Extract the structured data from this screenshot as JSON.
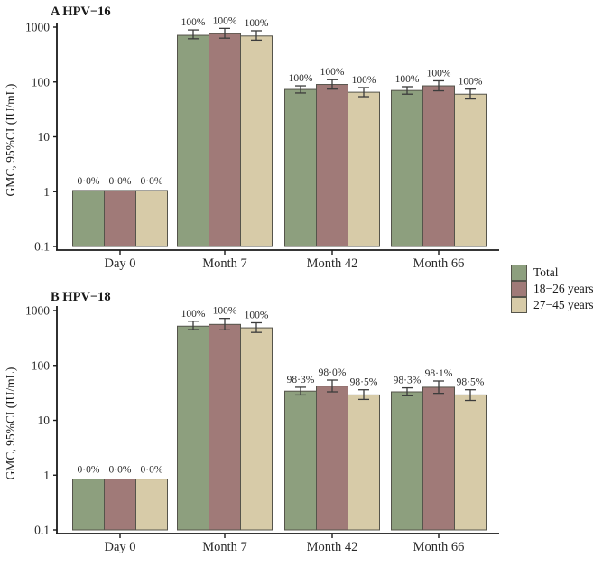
{
  "figure": {
    "legend": {
      "items": [
        {
          "label": "Total",
          "color": "#8d9f7e"
        },
        {
          "label": "18−26 years",
          "color": "#a07a78"
        },
        {
          "label": "27−45 years",
          "color": "#d7cba8"
        }
      ]
    },
    "colors": {
      "bar_border": "#55544b",
      "error_bar": "#3c3c3c",
      "axis": "#1a1a1a"
    }
  },
  "chart_data": [
    {
      "type": "bar",
      "panel_label": "A HPV−16",
      "ylabel": "GMC, 95%CI (IU/mL)",
      "yscale": "log",
      "ylim": [
        0.1,
        1000
      ],
      "yticks": [
        "1000",
        "100",
        "10",
        "1",
        "0.1"
      ],
      "categories": [
        "Day 0",
        "Month 7",
        "Month 42",
        "Month 66"
      ],
      "legend_position": "right",
      "grid": false,
      "series": [
        {
          "name": "Total",
          "color": "#8d9f7e",
          "values": [
            1.05,
            710,
            73,
            70
          ],
          "ci_low": [
            null,
            615,
            63,
            60
          ],
          "ci_high": [
            null,
            890,
            85,
            82
          ],
          "bar_labels": [
            "0·0%",
            "100%",
            "100%",
            "100%"
          ]
        },
        {
          "name": "18−26 years",
          "color": "#a07a78",
          "values": [
            1.05,
            760,
            90,
            85
          ],
          "ci_low": [
            null,
            630,
            74,
            69
          ],
          "ci_high": [
            null,
            950,
            110,
            105
          ],
          "bar_labels": [
            "0·0%",
            "100%",
            "100%",
            "100%"
          ]
        },
        {
          "name": "27−45 years",
          "color": "#d7cba8",
          "values": [
            1.05,
            690,
            65,
            60
          ],
          "ci_low": [
            null,
            580,
            54,
            49
          ],
          "ci_high": [
            null,
            860,
            79,
            74
          ],
          "bar_labels": [
            "0·0%",
            "100%",
            "100%",
            "100%"
          ]
        }
      ]
    },
    {
      "type": "bar",
      "panel_label": "B HPV−18",
      "ylabel": "GMC, 95%CI (IU/mL)",
      "yscale": "log",
      "ylim": [
        0.1,
        1000
      ],
      "yticks": [
        "1000",
        "100",
        "10",
        "1",
        "0.1"
      ],
      "categories": [
        "Day 0",
        "Month 7",
        "Month 42",
        "Month 66"
      ],
      "legend_position": "right",
      "grid": false,
      "series": [
        {
          "name": "Total",
          "color": "#8d9f7e",
          "values": [
            0.85,
            520,
            34,
            33
          ],
          "ci_low": [
            null,
            450,
            29,
            28
          ],
          "ci_high": [
            null,
            640,
            40,
            39
          ],
          "bar_labels": [
            "0·0%",
            "100%",
            "98·3%",
            "98·3%"
          ]
        },
        {
          "name": "18−26 years",
          "color": "#a07a78",
          "values": [
            0.85,
            560,
            42,
            40
          ],
          "ci_low": [
            null,
            445,
            33,
            31
          ],
          "ci_high": [
            null,
            720,
            54,
            52
          ],
          "bar_labels": [
            "0·0%",
            "100%",
            "98·0%",
            "98·1%"
          ]
        },
        {
          "name": "27−45 years",
          "color": "#d7cba8",
          "values": [
            0.85,
            485,
            29,
            29
          ],
          "ci_low": [
            null,
            400,
            24,
            23
          ],
          "ci_high": [
            null,
            600,
            36,
            36
          ],
          "bar_labels": [
            "0·0%",
            "100%",
            "98·5%",
            "98·5%"
          ]
        }
      ]
    }
  ]
}
